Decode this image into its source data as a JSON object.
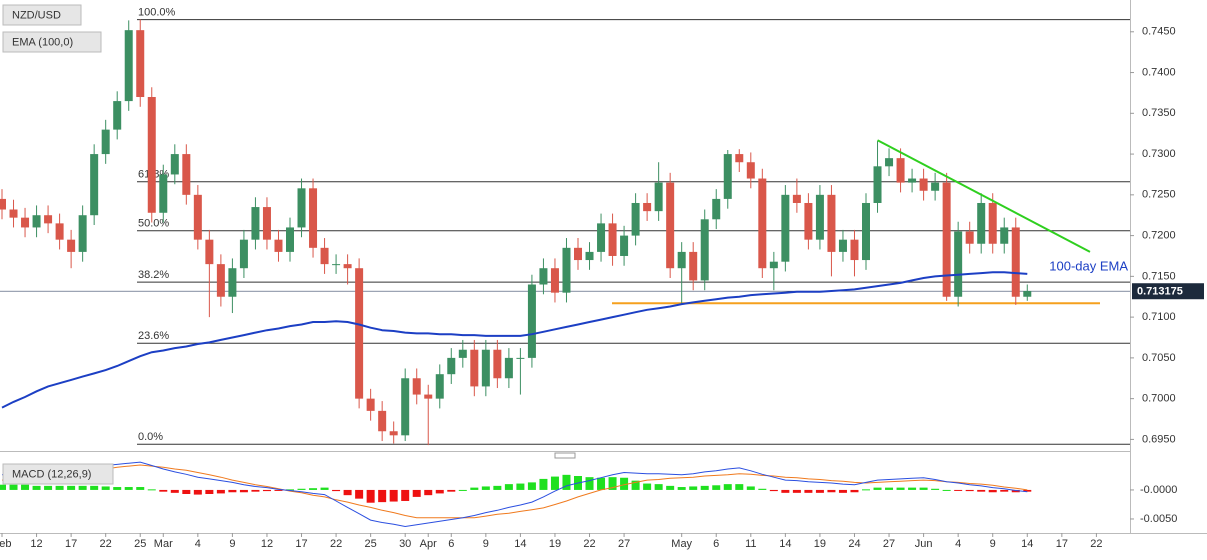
{
  "chart_data": {
    "type": "candlestick",
    "title": "NZD/USD",
    "indicator_label": "EMA (100,0)",
    "up_color": "#3c8f62",
    "down_color": "#d9574a",
    "categories": [
      "Feb",
      null,
      null,
      "12",
      null,
      null,
      "17",
      null,
      null,
      "22",
      null,
      null,
      "25",
      null,
      "Mar",
      null,
      null,
      "4",
      null,
      null,
      "9",
      null,
      null,
      "12",
      null,
      null,
      "17",
      null,
      null,
      "22",
      null,
      null,
      "25",
      null,
      null,
      "30",
      null,
      "Apr",
      null,
      "6",
      null,
      null,
      "9",
      null,
      null,
      "14",
      null,
      null,
      "19",
      null,
      null,
      "22",
      null,
      null,
      "27",
      null,
      null,
      null,
      null,
      "May",
      null,
      null,
      "6",
      null,
      null,
      "11",
      null,
      null,
      "14",
      null,
      null,
      "19",
      null,
      null,
      "24",
      null,
      null,
      "27",
      null,
      null,
      "Jun",
      null,
      null,
      "4",
      null,
      null,
      "9",
      null,
      null,
      "14",
      null,
      null,
      "17",
      null,
      null,
      "22"
    ],
    "open": [
      0.7245,
      0.7232,
      0.7222,
      0.721,
      0.7225,
      0.7215,
      0.7195,
      0.718,
      0.7225,
      0.73,
      0.733,
      0.7365,
      0.7452,
      0.737,
      0.7228,
      0.7275,
      0.73,
      0.725,
      0.7195,
      0.7165,
      0.7125,
      0.716,
      0.7195,
      0.7235,
      0.7195,
      0.718,
      0.721,
      0.7258,
      0.7185,
      0.7165,
      0.7165,
      0.716,
      0.7,
      0.6985,
      0.696,
      0.6955,
      0.7025,
      0.7005,
      0.7,
      0.703,
      0.705,
      0.706,
      0.7015,
      0.706,
      0.7025,
      0.705,
      0.705,
      0.714,
      0.716,
      0.713,
      0.7185,
      0.717,
      0.718,
      0.7215,
      0.7175,
      0.72,
      0.724,
      0.723,
      0.7265,
      0.716,
      0.718,
      0.7145,
      0.722,
      0.7245,
      0.73,
      0.729,
      0.727,
      0.716,
      0.7168,
      0.725,
      0.724,
      0.7195,
      0.725,
      0.718,
      0.7195,
      0.717,
      0.724,
      0.7285,
      0.7295,
      0.7265,
      0.727,
      0.7255,
      0.7265,
      0.7125,
      0.7205,
      0.719,
      0.724,
      0.719,
      0.721,
      0.7125,
      null,
      null,
      null,
      null,
      null,
      null
    ],
    "high": [
      0.7257,
      0.7244,
      0.7234,
      0.7237,
      0.7237,
      0.7227,
      0.7207,
      0.7237,
      0.7312,
      0.7342,
      0.7377,
      0.7464,
      0.7465,
      0.7382,
      0.7287,
      0.7312,
      0.7312,
      0.7262,
      0.7207,
      0.7177,
      0.7172,
      0.7207,
      0.7247,
      0.7247,
      0.7207,
      0.7222,
      0.727,
      0.727,
      0.7197,
      0.7177,
      0.7177,
      0.7172,
      0.7012,
      0.6997,
      0.6972,
      0.7037,
      0.7037,
      0.7017,
      0.7042,
      0.7062,
      0.7072,
      0.7072,
      0.7072,
      0.7072,
      0.7062,
      0.7062,
      0.7152,
      0.7172,
      0.7172,
      0.7197,
      0.7197,
      0.7192,
      0.7227,
      0.7227,
      0.7212,
      0.7252,
      0.7252,
      0.729,
      0.7277,
      0.7192,
      0.7192,
      0.7232,
      0.7257,
      0.7305,
      0.7306,
      0.7302,
      0.7282,
      0.718,
      0.7262,
      0.727,
      0.7252,
      0.7262,
      0.7262,
      0.7207,
      0.7207,
      0.7252,
      0.7316,
      0.7307,
      0.7307,
      0.7282,
      0.7282,
      0.7277,
      0.7277,
      0.7217,
      0.7217,
      0.7252,
      0.7252,
      0.7222,
      0.7222,
      0.714,
      null,
      null,
      null,
      null,
      null,
      null
    ],
    "low": [
      0.722,
      0.721,
      0.7198,
      0.7198,
      0.7203,
      0.7183,
      0.716,
      0.7168,
      0.7213,
      0.7288,
      0.7318,
      0.7353,
      0.7358,
      0.7216,
      0.7216,
      0.7263,
      0.7238,
      0.7183,
      0.71,
      0.7113,
      0.7105,
      0.7148,
      0.7183,
      0.7183,
      0.7168,
      0.7168,
      0.7198,
      0.7173,
      0.7153,
      0.7153,
      0.714,
      0.6988,
      0.6973,
      0.6948,
      0.6945,
      0.6948,
      0.6993,
      0.6943,
      0.6988,
      0.7018,
      0.7038,
      0.7003,
      0.7003,
      0.7013,
      0.7013,
      0.7005,
      0.7038,
      0.7128,
      0.7118,
      0.7118,
      0.7158,
      0.7158,
      0.7168,
      0.7163,
      0.7163,
      0.7188,
      0.7218,
      0.7218,
      0.7148,
      0.7115,
      0.7133,
      0.7133,
      0.7208,
      0.7233,
      0.7278,
      0.7258,
      0.7148,
      0.7133,
      0.7156,
      0.7228,
      0.7183,
      0.7183,
      0.715,
      0.7168,
      0.715,
      0.7158,
      0.7228,
      0.7273,
      0.7253,
      0.7253,
      0.7243,
      0.7243,
      0.712,
      0.7113,
      0.7178,
      0.7178,
      0.7178,
      0.7178,
      0.7115,
      0.712,
      null,
      null,
      null,
      null,
      null,
      null
    ],
    "close": [
      0.7232,
      0.7222,
      0.721,
      0.7225,
      0.7215,
      0.7195,
      0.718,
      0.7225,
      0.73,
      0.733,
      0.7365,
      0.7452,
      0.737,
      0.7228,
      0.7275,
      0.73,
      0.725,
      0.7195,
      0.7165,
      0.7125,
      0.716,
      0.7195,
      0.7235,
      0.7195,
      0.718,
      0.721,
      0.7258,
      0.7185,
      0.7165,
      0.7165,
      0.716,
      0.7,
      0.6985,
      0.696,
      0.6955,
      0.7025,
      0.7005,
      0.7,
      0.703,
      0.705,
      0.706,
      0.7015,
      0.706,
      0.7025,
      0.705,
      0.705,
      0.714,
      0.716,
      0.713,
      0.7185,
      0.717,
      0.718,
      0.7215,
      0.7175,
      0.72,
      0.724,
      0.723,
      0.7265,
      0.716,
      0.718,
      0.7145,
      0.722,
      0.7245,
      0.73,
      0.729,
      0.727,
      0.716,
      0.7168,
      0.725,
      0.724,
      0.7195,
      0.725,
      0.718,
      0.7195,
      0.717,
      0.724,
      0.7285,
      0.7295,
      0.7265,
      0.727,
      0.7255,
      0.7265,
      0.7125,
      0.7205,
      0.719,
      0.724,
      0.719,
      0.721,
      0.7125,
      0.7132,
      null,
      null,
      null,
      null,
      null,
      null
    ],
    "ylim": [
      0.6937,
      0.7489
    ],
    "yticks": [
      {
        "value": 0.695,
        "label": "0.6950"
      },
      {
        "value": 0.7,
        "label": "0.7000"
      },
      {
        "value": 0.705,
        "label": "0.7050"
      },
      {
        "value": 0.71,
        "label": "0.7100"
      },
      {
        "value": 0.715,
        "label": "0.7150"
      },
      {
        "value": 0.72,
        "label": "0.7200"
      },
      {
        "value": 0.725,
        "label": "0.7250"
      },
      {
        "value": 0.73,
        "label": "0.7300"
      },
      {
        "value": 0.735,
        "label": "0.7350"
      },
      {
        "value": 0.74,
        "label": "0.7400"
      },
      {
        "value": 0.745,
        "label": "0.7450"
      }
    ],
    "ema": {
      "name": "100-day EMA",
      "color": "#1c3fc4",
      "values": [
        0.6989,
        0.6996,
        0.7002,
        0.7009,
        0.7015,
        0.7019,
        0.7023,
        0.7027,
        0.7031,
        0.7035,
        0.704,
        0.7046,
        0.7052,
        0.7057,
        0.7059,
        0.7062,
        0.7064,
        0.7067,
        0.7069,
        0.7072,
        0.7075,
        0.7078,
        0.7081,
        0.7084,
        0.7086,
        0.7089,
        0.7091,
        0.7094,
        0.7094,
        0.7095,
        0.7094,
        0.7091,
        0.7087,
        0.7084,
        0.7083,
        0.7081,
        0.708,
        0.708,
        0.7079,
        0.7079,
        0.7078,
        0.7078,
        0.7077,
        0.7077,
        0.7077,
        0.7077,
        0.7079,
        0.7082,
        0.7085,
        0.7088,
        0.7091,
        0.7094,
        0.7097,
        0.71,
        0.7103,
        0.7106,
        0.7109,
        0.7111,
        0.7113,
        0.7116,
        0.7118,
        0.712,
        0.7122,
        0.7124,
        0.7125,
        0.7127,
        0.7128,
        0.7129,
        0.713,
        0.7131,
        0.7131,
        0.7131,
        0.7132,
        0.7133,
        0.7134,
        0.7136,
        0.7138,
        0.714,
        0.7142,
        0.7145,
        0.7148,
        0.715,
        0.7151,
        0.7152,
        0.7153,
        0.7154,
        0.7155,
        0.7155,
        0.7154,
        0.7153,
        null,
        null,
        null,
        null,
        null,
        null
      ]
    },
    "fib_levels": [
      {
        "label": "100.0%",
        "value": 0.7465
      },
      {
        "label": "61.8%",
        "value": 0.7266
      },
      {
        "label": "50.0%",
        "value": 0.7206
      },
      {
        "label": "38.2%",
        "value": 0.7143
      },
      {
        "label": "23.6%",
        "value": 0.7068
      },
      {
        "label": "0.0%",
        "value": 0.6944
      }
    ],
    "support": {
      "value": 0.7117,
      "color": "#f5a01e"
    },
    "trendline": {
      "values": [
        0.7317,
        0.718
      ],
      "color": "#2fcf1f"
    },
    "last_price": 0.713175,
    "macd": {
      "title": "MACD (12,26,9)",
      "ylim": [
        -0.0069,
        0.0055
      ],
      "yticks": [
        {
          "value": 0,
          "label": "-0.0000"
        },
        {
          "value": -0.005,
          "label": "-0.0050"
        }
      ],
      "macd_line": {
        "color": "#2b4fe0",
        "values": [
          0.0026,
          0.0028,
          0.003,
          0.0031,
          0.0033,
          0.0035,
          0.0037,
          0.0039,
          0.0041,
          0.0042,
          0.0044,
          0.0046,
          0.0048,
          0.0042,
          0.0036,
          0.0031,
          0.0027,
          0.0022,
          0.0019,
          0.0016,
          0.0013,
          0.0009,
          0.0006,
          0.0004,
          0.0001,
          -0.0001,
          -0.0003,
          -0.0006,
          -0.0008,
          -0.0019,
          -0.003,
          -0.0041,
          -0.0052,
          -0.0056,
          -0.0059,
          -0.0063,
          -0.006,
          -0.0057,
          -0.0054,
          -0.0051,
          -0.0048,
          -0.0044,
          -0.0039,
          -0.0035,
          -0.003,
          -0.0026,
          -0.0021,
          -0.0012,
          -0.0002,
          0.0007,
          0.0012,
          0.0016,
          0.0021,
          0.0026,
          0.003,
          0.0029,
          0.0028,
          0.0028,
          0.0027,
          0.0026,
          0.0028,
          0.0031,
          0.0033,
          0.0036,
          0.0038,
          0.0033,
          0.0027,
          0.0022,
          0.0017,
          0.0016,
          0.0014,
          0.0013,
          0.0012,
          0.001,
          0.0009,
          0.0013,
          0.0017,
          0.0018,
          0.0019,
          0.002,
          0.0021,
          0.0018,
          0.0014,
          0.0012,
          0.0009,
          0.0007,
          0.0004,
          0.0002,
          -0.0001,
          -0.0003,
          null,
          null,
          null,
          null,
          null,
          null
        ]
      },
      "signal_line": {
        "color": "#f07a1e",
        "values": [
          0.0017,
          0.0019,
          0.0021,
          0.0024,
          0.0026,
          0.0028,
          0.003,
          0.0032,
          0.0034,
          0.0036,
          0.0039,
          0.0041,
          0.0043,
          0.0041,
          0.0039,
          0.0036,
          0.0034,
          0.003,
          0.0026,
          0.0022,
          0.0017,
          0.0013,
          0.0009,
          0.0006,
          0.0002,
          -0.0002,
          -0.0005,
          -0.0009,
          -0.0012,
          -0.0017,
          -0.0021,
          -0.0026,
          -0.003,
          -0.0035,
          -0.0039,
          -0.0044,
          -0.0048,
          -0.0048,
          -0.0048,
          -0.0048,
          -0.0048,
          -0.0048,
          -0.0045,
          -0.0042,
          -0.004,
          -0.0037,
          -0.0034,
          -0.0031,
          -0.0025,
          -0.0019,
          -0.0012,
          -0.0006,
          0.0,
          0.0004,
          0.0009,
          0.0013,
          0.0017,
          0.0018,
          0.002,
          0.0021,
          0.0022,
          0.0024,
          0.0025,
          0.0026,
          0.0028,
          0.0027,
          0.0025,
          0.0024,
          0.0022,
          0.0021,
          0.0019,
          0.0018,
          0.0016,
          0.0015,
          0.0013,
          0.0012,
          0.0013,
          0.0014,
          0.0015,
          0.0016,
          0.0017,
          0.0016,
          0.0014,
          0.0013,
          0.0011,
          0.001,
          0.0008,
          0.0005,
          0.0003,
          0.0,
          null,
          null,
          null,
          null,
          null,
          null
        ]
      },
      "histogram": {
        "up_color": "#1fe01f",
        "down_color": "#ee1111",
        "values": [
          0.0009,
          0.0009,
          0.0009,
          0.0007,
          0.0007,
          0.0007,
          0.0007,
          0.0007,
          0.0007,
          0.0006,
          0.0005,
          0.0005,
          0.0005,
          0.0001,
          -0.0003,
          -0.0005,
          -0.0007,
          -0.0008,
          -0.0007,
          -0.0006,
          -0.0004,
          -0.0004,
          -0.0003,
          -0.0002,
          -0.0001,
          0.0001,
          0.0002,
          0.0003,
          0.0004,
          -0.0002,
          -0.0009,
          -0.0015,
          -0.0022,
          -0.0021,
          -0.002,
          -0.0019,
          -0.0012,
          -0.0009,
          -0.0006,
          -0.0003,
          0.0,
          0.0004,
          0.0006,
          0.0007,
          0.001,
          0.0011,
          0.0013,
          0.0019,
          0.0023,
          0.0026,
          0.0024,
          0.0022,
          0.0021,
          0.0022,
          0.0021,
          0.0016,
          0.0011,
          0.001,
          0.0007,
          0.0005,
          0.0006,
          0.0007,
          0.0008,
          0.001,
          0.001,
          0.0006,
          0.0002,
          -0.0002,
          -0.0005,
          -0.0005,
          -0.0005,
          -0.0005,
          -0.0004,
          -0.0005,
          -0.0004,
          0.0001,
          0.0004,
          0.0004,
          0.0004,
          0.0004,
          0.0004,
          0.0002,
          0.0,
          -0.0001,
          -0.0002,
          -0.0003,
          -0.0004,
          -0.0003,
          -0.0004,
          -0.0003,
          null,
          null,
          null,
          null,
          null,
          null
        ]
      }
    }
  }
}
